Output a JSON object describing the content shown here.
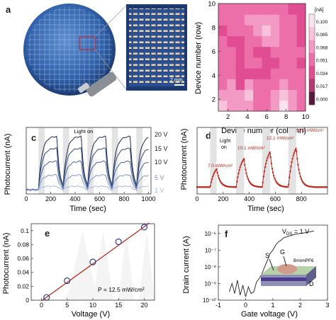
{
  "panels": {
    "a": "a",
    "b": "b",
    "c": "c",
    "d": "d",
    "e": "e",
    "f": "f"
  },
  "panel_a": {
    "scale_bar": "2 mm"
  },
  "chart_data": [
    {
      "panel": "b",
      "type": "heatmap",
      "xlabel": "Device number (column)",
      "ylabel": "Device number (row)",
      "xlim": [
        1,
        10
      ],
      "ylim": [
        1,
        10
      ],
      "xticks": [
        2,
        4,
        6,
        8,
        10
      ],
      "yticks": [
        2,
        4,
        6,
        8,
        10
      ],
      "colorbar_unit": "[nA]",
      "colorbar_ticks": [
        "0.100",
        "0.085",
        "0.068",
        "0.051",
        "0.034",
        "0.017",
        "0.000"
      ],
      "colorbar_colors": [
        "#fbe3ee",
        "#f6c3da",
        "#f29ac3",
        "#ec6faa",
        "#e04d92",
        "#b13a74",
        "#541c3a"
      ],
      "values": [
        [
          0.08,
          0.07,
          0.068,
          0.072,
          0.06,
          0.058,
          0.07,
          0.082,
          0.072,
          0.06
        ],
        [
          0.072,
          0.07,
          0.065,
          0.08,
          0.062,
          0.06,
          0.065,
          0.078,
          0.07,
          0.062
        ],
        [
          0.062,
          0.064,
          0.055,
          0.065,
          0.058,
          0.056,
          0.06,
          0.065,
          0.062,
          0.058
        ],
        [
          0.06,
          0.062,
          0.052,
          0.055,
          0.052,
          0.055,
          0.057,
          0.062,
          0.058,
          0.056
        ],
        [
          0.057,
          0.058,
          0.055,
          0.057,
          0.056,
          0.055,
          0.055,
          0.058,
          0.057,
          0.054
        ],
        [
          0.062,
          0.056,
          0.054,
          0.06,
          0.055,
          0.055,
          0.056,
          0.056,
          0.06,
          0.058
        ],
        [
          0.058,
          0.055,
          0.055,
          0.058,
          0.062,
          0.064,
          0.064,
          0.058,
          0.057,
          0.055
        ],
        [
          0.055,
          0.056,
          0.058,
          0.062,
          0.07,
          0.075,
          0.066,
          0.06,
          0.057,
          0.055
        ],
        [
          0.056,
          0.057,
          0.06,
          0.065,
          0.072,
          0.07,
          0.064,
          0.058,
          0.056,
          0.054
        ],
        [
          0.058,
          0.058,
          0.06,
          0.06,
          0.062,
          0.063,
          0.062,
          0.058,
          0.055,
          0.054
        ]
      ]
    },
    {
      "panel": "c",
      "type": "line",
      "xlabel": "Time (sec)",
      "ylabel": "Photocurrent (nA)",
      "xlim": [
        0,
        1020
      ],
      "xticks": [
        0,
        200,
        400,
        600,
        800,
        1000
      ],
      "annotation": "Light on",
      "light_on": [
        [
          100,
          150
        ],
        [
          300,
          350
        ],
        [
          500,
          550
        ],
        [
          700,
          750
        ],
        [
          900,
          950
        ]
      ],
      "series": [
        {
          "name": "20 V",
          "color": "#1c2a4a",
          "amp": 0.9
        },
        {
          "name": "15 V",
          "color": "#2f4679",
          "amp": 0.7
        },
        {
          "name": "10 V",
          "color": "#4a62a0",
          "amp": 0.48
        },
        {
          "name": "5 V",
          "color": "#7a93cc",
          "amp": 0.25
        },
        {
          "name": "1 V",
          "color": "#a7b8e0",
          "amp": 0.06
        }
      ]
    },
    {
      "panel": "d",
      "type": "line",
      "xlabel": "Time (sec)",
      "ylabel": "Photocurrent (nA)",
      "xlim": [
        0,
        1000
      ],
      "xticks": [
        0,
        200,
        400,
        600,
        800
      ],
      "annotation": "Light on",
      "light_on": [
        [
          100,
          150
        ],
        [
          300,
          360
        ],
        [
          500,
          560
        ],
        [
          700,
          760
        ]
      ],
      "series_color": "#c0271f",
      "pulses": [
        {
          "label": "7.0 mW/cm²",
          "amp": 0.4
        },
        {
          "label": "10.1 mW/cm²",
          "amp": 0.58
        },
        {
          "label": "12.1 mW/cm²",
          "amp": 0.72
        },
        {
          "label": "12.5 mW/cm²",
          "amp": 0.8
        }
      ]
    },
    {
      "panel": "e",
      "type": "scatter",
      "xlabel": "Voltage (V)",
      "ylabel": "Photocurrent (nA)",
      "xlim": [
        -2,
        22
      ],
      "ylim": [
        0,
        0.11
      ],
      "xticks": [
        0,
        5,
        10,
        15,
        20
      ],
      "yticks": [
        "0",
        "0.02",
        "0.04",
        "0.06",
        "0.08",
        "0.1"
      ],
      "annotation": "P = 12.5 mW/cm²",
      "x": [
        1,
        5,
        10,
        15,
        20
      ],
      "y": [
        0.004,
        0.028,
        0.055,
        0.084,
        0.105
      ],
      "fit_color": "#c0271f",
      "marker_color": "#2a3d8f"
    },
    {
      "panel": "f",
      "type": "line",
      "xlabel": "Gate voltage (V)",
      "ylabel": "Drain current (A)",
      "xlim": [
        -1,
        3
      ],
      "xticks": [
        "-1",
        "0",
        "1",
        "2",
        "3"
      ],
      "ylim_log": [
        -10,
        -5.5
      ],
      "yticks": [
        "10⁻¹⁰",
        "10⁻⁹",
        "10⁻⁸",
        "10⁻⁷",
        "10⁻⁶"
      ],
      "annotation": "V",
      "annotation_sub": "DS",
      "annotation_tail": " = 1 V",
      "inset_labels": {
        "s": "S",
        "g": "G",
        "d": "D",
        "ionic": "BmimPF6"
      },
      "x": [
        -0.6,
        -0.5,
        -0.4,
        -0.3,
        -0.2,
        -0.1,
        0.0,
        0.1,
        0.2,
        0.3,
        0.4,
        0.5,
        0.6,
        0.7,
        0.8,
        0.9,
        1.0,
        1.1,
        1.2,
        1.3,
        1.4,
        1.5,
        1.6,
        1.8,
        2.0,
        2.2,
        2.5
      ],
      "y": [
        -9.5,
        -9.0,
        -9.6,
        -8.8,
        -9.7,
        -9.1,
        -9.8,
        -9.2,
        -9.6,
        -9.5,
        -8.9,
        -8.7,
        -8.4,
        -8.0,
        -7.6,
        -7.2,
        -7.0,
        -6.7,
        -6.5,
        -6.4,
        -6.25,
        -6.2,
        -6.15,
        -6.05,
        -6.0,
        -5.95,
        -5.85
      ]
    }
  ]
}
